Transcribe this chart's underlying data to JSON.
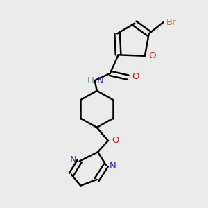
{
  "background_color": "#ebebeb",
  "fig_size": [
    3.0,
    3.0
  ],
  "dpi": 100,
  "xlim": [
    0,
    1
  ],
  "ylim": [
    0,
    1
  ]
}
